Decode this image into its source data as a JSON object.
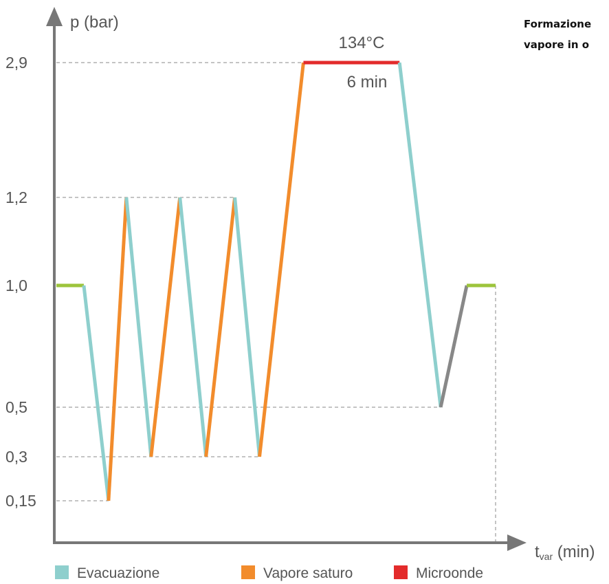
{
  "side_text": {
    "line1": "Formazione",
    "line2": "vapore in o"
  },
  "chart_data": {
    "type": "line",
    "ylabel": "p (bar)",
    "xlabel": {
      "main": "t",
      "sub": "var",
      "unit": " (min)"
    },
    "y_ticks": [
      {
        "value": 2.9,
        "label": "2,9"
      },
      {
        "value": 1.2,
        "label": "1,2"
      },
      {
        "value": 1.0,
        "label": "1,0"
      },
      {
        "value": 0.5,
        "label": "0,5"
      },
      {
        "value": 0.3,
        "label": "0,3"
      },
      {
        "value": 0.15,
        "label": "0,15"
      }
    ],
    "x_range": [
      0,
      16
    ],
    "annotations": {
      "temperature": "134°C",
      "duration": "6 min"
    },
    "colors": {
      "evacuazione": "#8ecfcd",
      "vapore_saturo": "#f28c2c",
      "microonde": "#e32b2b",
      "ambient": "#9dc43c",
      "venting": "#888888"
    },
    "segments": [
      {
        "phase": "ambient",
        "from": [
          0.0,
          1.0
        ],
        "to": [
          1.0,
          1.0
        ]
      },
      {
        "phase": "evacuazione",
        "from": [
          1.0,
          1.0
        ],
        "to": [
          1.9,
          0.15
        ]
      },
      {
        "phase": "vapore_saturo",
        "from": [
          1.9,
          0.15
        ],
        "to": [
          2.55,
          1.2
        ]
      },
      {
        "phase": "evacuazione",
        "from": [
          2.55,
          1.2
        ],
        "to": [
          3.45,
          0.3
        ]
      },
      {
        "phase": "vapore_saturo",
        "from": [
          3.45,
          0.3
        ],
        "to": [
          4.5,
          1.2
        ]
      },
      {
        "phase": "evacuazione",
        "from": [
          4.5,
          1.2
        ],
        "to": [
          5.45,
          0.3
        ]
      },
      {
        "phase": "vapore_saturo",
        "from": [
          5.45,
          0.3
        ],
        "to": [
          6.5,
          1.2
        ]
      },
      {
        "phase": "evacuazione",
        "from": [
          6.5,
          1.2
        ],
        "to": [
          7.4,
          0.3
        ]
      },
      {
        "phase": "vapore_saturo",
        "from": [
          7.4,
          0.3
        ],
        "to": [
          9.0,
          2.9
        ]
      },
      {
        "phase": "microonde",
        "from": [
          9.0,
          2.9
        ],
        "to": [
          12.5,
          2.9
        ]
      },
      {
        "phase": "evacuazione",
        "from": [
          12.5,
          2.9
        ],
        "to": [
          14.0,
          0.5
        ]
      },
      {
        "phase": "venting",
        "from": [
          14.0,
          0.5
        ],
        "to": [
          14.95,
          1.0
        ]
      },
      {
        "phase": "ambient",
        "from": [
          14.95,
          1.0
        ],
        "to": [
          16.0,
          1.0
        ]
      }
    ],
    "legend": [
      {
        "label": "Evacuazione",
        "phase": "evacuazione"
      },
      {
        "label": "Vapore saturo",
        "phase": "vapore_saturo"
      },
      {
        "label": "Microonde",
        "phase": "microonde"
      }
    ]
  }
}
